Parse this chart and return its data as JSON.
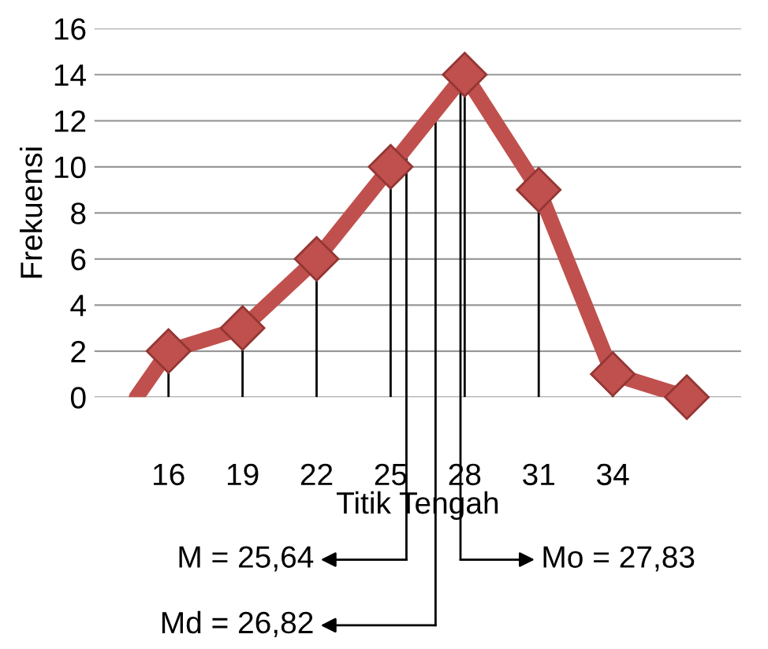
{
  "chart_data": {
    "type": "line",
    "xlabel": "Titik Tengah",
    "ylabel": "Frekuensi",
    "xlim": [
      13,
      39.2
    ],
    "ylim": [
      0,
      16
    ],
    "xticks": [
      16,
      19,
      22,
      25,
      28,
      31,
      34
    ],
    "yticks": [
      0,
      2,
      4,
      6,
      8,
      10,
      12,
      14,
      16
    ],
    "grid": "y",
    "line_style": "solid",
    "series": [
      {
        "color": "#c0504d",
        "x": [
          14.7,
          16
        ],
        "values": [
          0,
          2
        ]
      },
      {
        "color": "#c0504d",
        "x": [
          16,
          19,
          22,
          25,
          28,
          31,
          34,
          37
        ],
        "values": [
          2,
          3,
          6,
          10,
          14,
          9,
          1,
          0
        ]
      },
      {
        "type": "lollipop",
        "color": "#c0504d",
        "marker": "diamond",
        "x": [
          16,
          19,
          22,
          25,
          28,
          31,
          34,
          37
        ],
        "values": [
          2,
          3,
          6,
          10,
          14,
          9,
          1,
          0
        ]
      }
    ],
    "ref_lines": [
      {
        "axis": "x",
        "value": 25.64,
        "label": "M = 25,64",
        "color": "#000000"
      },
      {
        "axis": "x",
        "value": 26.82,
        "label": "Md = 26,82",
        "color": "#000000"
      },
      {
        "axis": "x",
        "value": 27.83,
        "label": "Mo = 27,83",
        "color": "#000000"
      }
    ]
  }
}
